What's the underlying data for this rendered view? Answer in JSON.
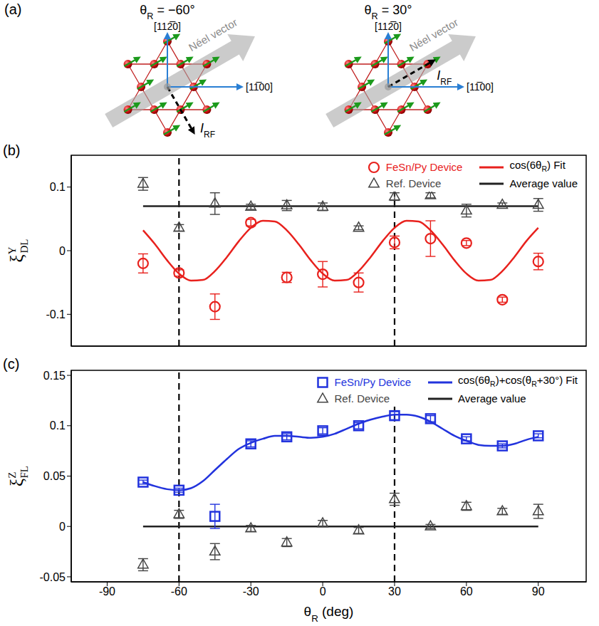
{
  "diagram": {
    "label": "(a)",
    "axes": {
      "x": "[11̅00]",
      "y": "[112̅0]"
    },
    "neel_vector": {
      "label": "Néel vector",
      "angle": 30
    },
    "current_label": {
      "main": "I",
      "sub": "RF"
    },
    "panels": [
      {
        "title": "θR = −60°",
        "current_angle": -60
      },
      {
        "title": "θR = 30°",
        "current_angle": 30
      }
    ]
  },
  "chart_data": [
    {
      "type": "scatter",
      "panel_label": "(b)",
      "ylabel": {
        "symbol": "ξ",
        "superscript": "Y",
        "subscript": "DL"
      },
      "xlim": [
        -105,
        110
      ],
      "xticks": [
        -90,
        -60,
        -30,
        0,
        30,
        60,
        90
      ],
      "ylim": [
        -0.15,
        0.15
      ],
      "yticks": [
        -0.1,
        0,
        0.1
      ],
      "tick_labels": "y",
      "grid": false,
      "legend": "upper right",
      "reference_lines": {
        "x": [
          -60,
          30
        ],
        "line_style": "dashed"
      },
      "series": [
        {
          "name": "FeSn/Py Device",
          "type": "scatter",
          "marker": "circle",
          "color": "#e8211d",
          "x": [
            -75,
            -60,
            -45,
            -30,
            -15,
            0,
            15,
            30,
            45,
            60,
            75,
            90
          ],
          "values": [
            -0.02,
            -0.035,
            -0.088,
            0.044,
            -0.042,
            -0.037,
            -0.05,
            0.013,
            0.019,
            0.012,
            -0.077,
            -0.017
          ],
          "errors": [
            0.015,
            0.005,
            0.02,
            0.005,
            0.008,
            0.02,
            0.015,
            0.01,
            0.028,
            0.004,
            0.004,
            0.013
          ]
        },
        {
          "name": "Ref. Device",
          "type": "scatter",
          "marker": "triangle",
          "color": "#444444",
          "x": [
            -75,
            -60,
            -45,
            -30,
            -15,
            0,
            15,
            30,
            45,
            60,
            75,
            90
          ],
          "values": [
            0.105,
            0.036,
            0.074,
            0.069,
            0.071,
            0.069,
            0.036,
            0.085,
            0.087,
            0.063,
            0.072,
            0.072
          ],
          "errors": [
            0.01,
            0.005,
            0.017,
            0.004,
            0.008,
            0.006,
            0.003,
            0.006,
            0.004,
            0.01,
            0.003,
            0.01
          ]
        },
        {
          "name": "cos(6θR) Fit",
          "type": "line",
          "line_style": "solid",
          "color": "#e8211d",
          "x": [
            -75,
            -70,
            -65,
            -60,
            -55,
            -50,
            -45,
            -40,
            -35,
            -30,
            -25,
            -20,
            -15,
            -10,
            -5,
            0,
            5,
            10,
            15,
            20,
            25,
            30,
            35,
            40,
            45,
            50,
            55,
            60,
            65,
            70,
            75,
            80,
            85,
            90
          ],
          "values": [
            0.032,
            0.01,
            -0.015,
            -0.036,
            -0.047,
            -0.046,
            -0.032,
            -0.01,
            0.015,
            0.036,
            0.047,
            0.046,
            0.032,
            0.01,
            -0.015,
            -0.036,
            -0.047,
            -0.046,
            -0.032,
            -0.01,
            0.015,
            0.036,
            0.047,
            0.046,
            0.032,
            0.01,
            -0.015,
            -0.036,
            -0.047,
            -0.046,
            -0.032,
            -0.01,
            0.015,
            0.036
          ]
        },
        {
          "name": "Average value",
          "type": "line",
          "line_style": "solid",
          "color": "#222222",
          "x": [
            -75,
            90
          ],
          "values": [
            0.07,
            0.07
          ]
        }
      ]
    },
    {
      "type": "scatter",
      "panel_label": "(c)",
      "ylabel": {
        "symbol": "ξ",
        "superscript": "Z",
        "subscript": "FL"
      },
      "xlabel": "θR (deg)",
      "xlim": [
        -105,
        110
      ],
      "xticks": [
        -90,
        -60,
        -30,
        0,
        30,
        60,
        90
      ],
      "ylim": [
        -0.055,
        0.155
      ],
      "yticks": [
        -0.05,
        0,
        0.05,
        0.1,
        0.15
      ],
      "tick_labels": true,
      "grid": false,
      "legend": "upper right",
      "reference_lines": {
        "x": [
          -60,
          30
        ],
        "line_style": "dashed"
      },
      "series": [
        {
          "name": "FeSn/Py Device",
          "type": "scatter",
          "marker": "square",
          "color": "#2233dd",
          "x": [
            -75,
            -60,
            -45,
            -30,
            -15,
            0,
            15,
            30,
            45,
            60,
            75,
            90
          ],
          "values": [
            0.044,
            0.036,
            0.01,
            0.082,
            0.089,
            0.095,
            0.1,
            0.11,
            0.107,
            0.087,
            0.08,
            0.09
          ],
          "errors": [
            0.002,
            0.002,
            0.012,
            0.003,
            0.003,
            0.003,
            0.003,
            0.004,
            0.003,
            0.002,
            0.002,
            0.002
          ]
        },
        {
          "name": "Ref. Device",
          "type": "scatter",
          "marker": "triangle",
          "color": "#444444",
          "x": [
            -75,
            -60,
            -45,
            -30,
            -15,
            0,
            15,
            30,
            45,
            60,
            75,
            90
          ],
          "values": [
            -0.038,
            0.012,
            -0.025,
            -0.002,
            -0.016,
            0.003,
            -0.004,
            0.027,
            0,
            0.02,
            0.015,
            0.015
          ],
          "errors": [
            0.006,
            0.004,
            0.008,
            0.003,
            0.004,
            0.003,
            0.003,
            0.006,
            0.002,
            0.004,
            0.003,
            0.007
          ]
        },
        {
          "name": "cos(6θR)+cos(θR+30°) Fit",
          "type": "line",
          "line_style": "solid",
          "color": "#2233dd",
          "x": [
            -75,
            -70,
            -65,
            -60,
            -55,
            -50,
            -45,
            -40,
            -35,
            -30,
            -25,
            -20,
            -15,
            -10,
            -5,
            0,
            5,
            10,
            15,
            20,
            25,
            30,
            35,
            40,
            45,
            50,
            55,
            60,
            65,
            70,
            75,
            80,
            85,
            90
          ],
          "values": [
            0.044,
            0.04,
            0.037,
            0.036,
            0.038,
            0.045,
            0.056,
            0.067,
            0.077,
            0.083,
            0.087,
            0.09,
            0.09,
            0.089,
            0.088,
            0.089,
            0.092,
            0.097,
            0.102,
            0.106,
            0.109,
            0.111,
            0.111,
            0.109,
            0.104,
            0.097,
            0.09,
            0.085,
            0.081,
            0.08,
            0.08,
            0.082,
            0.086,
            0.089
          ]
        },
        {
          "name": "Average value",
          "type": "line",
          "line_style": "solid",
          "color": "#222222",
          "x": [
            -75,
            90
          ],
          "values": [
            0,
            0
          ]
        }
      ]
    }
  ]
}
